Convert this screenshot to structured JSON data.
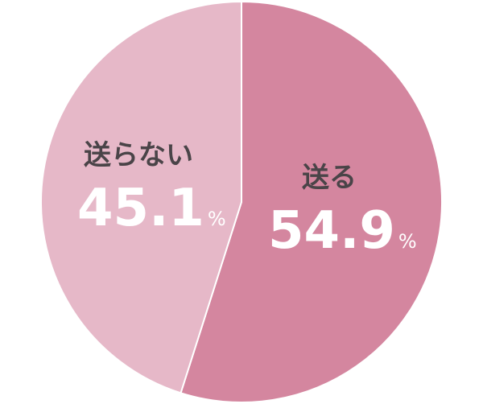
{
  "chart_data": {
    "type": "pie",
    "title": "",
    "slices": [
      {
        "label": "送る",
        "value": 54.9,
        "display": "54.9",
        "unit": "%",
        "color": "#d4869f"
      },
      {
        "label": "送らない",
        "value": 45.1,
        "display": "45.1",
        "unit": "%",
        "color": "#e6b8c8"
      }
    ],
    "start": "top",
    "direction": "clockwise",
    "separator_color": "#ffffff"
  }
}
